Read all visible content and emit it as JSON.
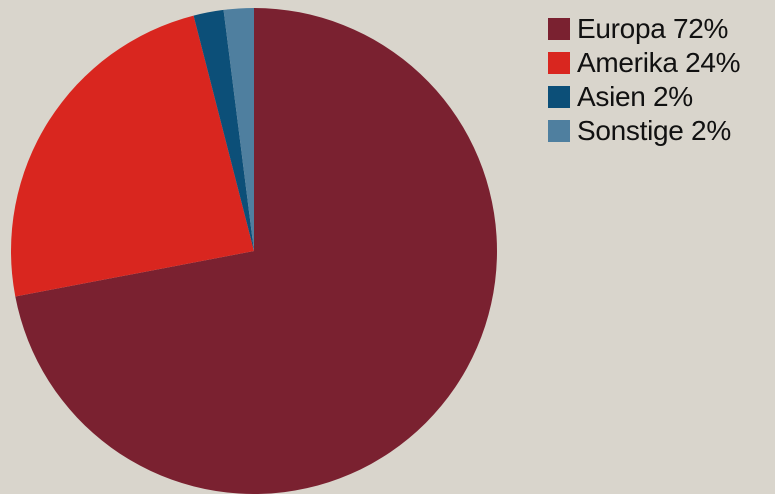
{
  "chart_data": {
    "type": "pie",
    "title": "",
    "legend_position": "top-right",
    "start_angle_deg": 0,
    "direction": "clockwise",
    "slices": [
      {
        "name": "Europa",
        "value": 72,
        "label": "Europa 72%",
        "color": "#7a2130"
      },
      {
        "name": "Amerika",
        "value": 24,
        "label": "Amerika 24%",
        "color": "#d9261f"
      },
      {
        "name": "Asien",
        "value": 2,
        "label": "Asien 2%",
        "color": "#0c4f78"
      },
      {
        "name": "Sonstige",
        "value": 2,
        "label": "Sonstige 2%",
        "color": "#4f7f9f"
      }
    ]
  }
}
